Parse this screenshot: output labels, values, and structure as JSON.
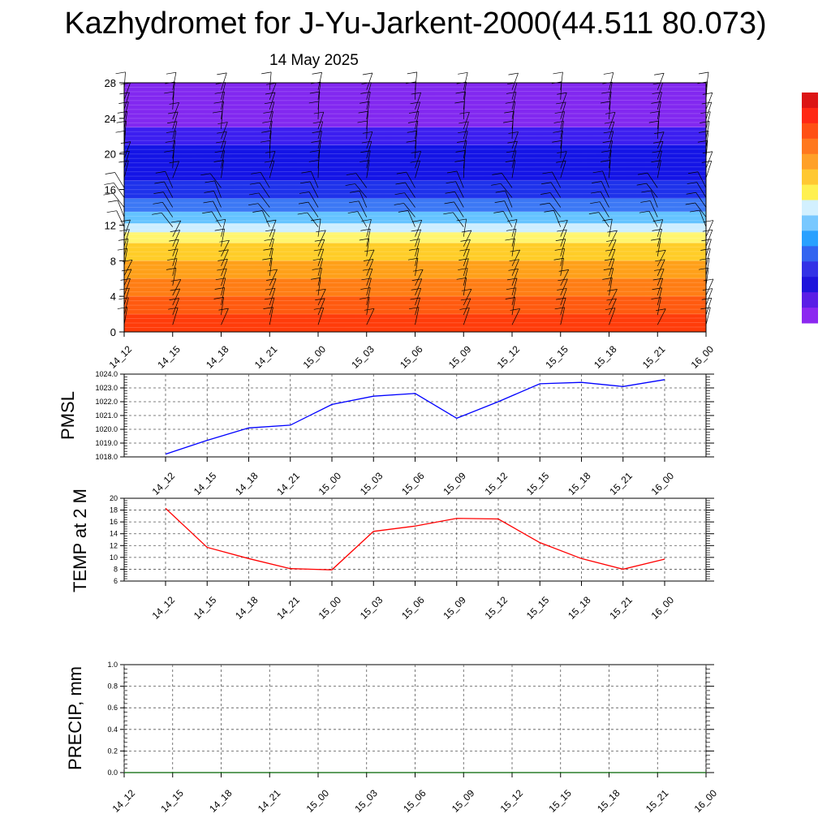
{
  "title": "Kazhydromet for J-Yu-Jarkent-2000(44.511 80.073)",
  "date": "14 May 2025",
  "chart_data": [
    {
      "type": "heatmap",
      "title": "",
      "xlabel": "",
      "ylabel": "",
      "x_labels": [
        "14_12",
        "14_15",
        "14_18",
        "14_21",
        "15_00",
        "15_03",
        "15_06",
        "15_09",
        "15_12",
        "15_15",
        "15_18",
        "15_21",
        "16_00"
      ],
      "y_ticks": [
        0,
        4,
        8,
        12,
        16,
        20,
        24,
        28
      ],
      "ylim": [
        0,
        28
      ],
      "color_bands": [
        {
          "from": 0,
          "to": 2,
          "color": "#ff3c0a"
        },
        {
          "from": 2,
          "to": 4,
          "color": "#ff5a0f"
        },
        {
          "from": 4,
          "to": 6,
          "color": "#ff7d14"
        },
        {
          "from": 6,
          "to": 8,
          "color": "#ffa019"
        },
        {
          "from": 8,
          "to": 10,
          "color": "#ffcd28"
        },
        {
          "from": 10,
          "to": 11.2,
          "color": "#fff56e"
        },
        {
          "from": 11.2,
          "to": 12.2,
          "color": "#cdeeff"
        },
        {
          "from": 12.2,
          "to": 13.5,
          "color": "#64c3ff"
        },
        {
          "from": 13.5,
          "to": 15,
          "color": "#3c78f5"
        },
        {
          "from": 15,
          "to": 17,
          "color": "#1e32eb"
        },
        {
          "from": 17,
          "to": 21,
          "color": "#1414e6"
        },
        {
          "from": 21,
          "to": 23,
          "color": "#3c1ef0"
        },
        {
          "from": 23,
          "to": 28,
          "color": "#8228f0"
        }
      ],
      "colorbar": [
        "#dc1414",
        "#ff2814",
        "#ff5014",
        "#ff781e",
        "#ffa028",
        "#ffc832",
        "#fff050",
        "#d2f0ff",
        "#78c8ff",
        "#28a0ff",
        "#3264f0",
        "#3232e6",
        "#1e14dc",
        "#5a1ee6",
        "#8c28f0"
      ],
      "wind_barbs": true
    },
    {
      "type": "line",
      "title": "",
      "ylabel": "PMSL",
      "x_labels": [
        "14_12",
        "14_15",
        "14_18",
        "14_21",
        "15_00",
        "15_03",
        "15_06",
        "15_09",
        "15_12",
        "15_15",
        "15_18",
        "15_21",
        "16_00"
      ],
      "series": [
        {
          "color": "#0000ff",
          "values": [
            1018.2,
            1019.2,
            1020.1,
            1020.3,
            1021.8,
            1022.4,
            1022.6,
            1020.8,
            1022.0,
            1023.3,
            1023.4,
            1023.1,
            1023.6
          ]
        }
      ],
      "y_ticks": [
        1018.0,
        1019.0,
        1020.0,
        1021.0,
        1022.0,
        1023.0,
        1024.0
      ],
      "y_tick_labels": [
        "1018.0",
        "1019.0",
        "1020.0",
        "1021.0",
        "1022.0",
        "1023.0",
        "1024.0"
      ],
      "ylim": [
        1018.0,
        1024.0
      ],
      "grid": true
    },
    {
      "type": "line",
      "title": "",
      "ylabel": "TEMP at 2 M",
      "x_labels": [
        "14_12",
        "14_15",
        "14_18",
        "14_21",
        "15_00",
        "15_03",
        "15_06",
        "15_09",
        "15_12",
        "15_15",
        "15_18",
        "15_21",
        "16_00"
      ],
      "series": [
        {
          "color": "#ff0000",
          "values": [
            18.3,
            11.7,
            9.8,
            8.1,
            7.9,
            14.4,
            15.3,
            16.6,
            16.5,
            12.5,
            9.8,
            8.0,
            9.7
          ]
        }
      ],
      "y_ticks": [
        6,
        8,
        10,
        12,
        14,
        16,
        18,
        20
      ],
      "y_tick_labels": [
        "6",
        "8",
        "10",
        "12",
        "14",
        "16",
        "18",
        "20"
      ],
      "ylim": [
        6,
        20
      ],
      "grid": true
    },
    {
      "type": "line",
      "title": "",
      "ylabel": "PRECIP, mm",
      "x_labels": [
        "14_12",
        "14_15",
        "14_18",
        "14_21",
        "15_00",
        "15_03",
        "15_06",
        "15_09",
        "15_12",
        "15_15",
        "15_18",
        "15_21",
        "16_00"
      ],
      "series": [
        {
          "color": "#006400",
          "values": [
            0,
            0,
            0,
            0,
            0,
            0,
            0,
            0,
            0,
            0,
            0,
            0,
            0
          ]
        }
      ],
      "y_ticks": [
        0.0,
        0.2,
        0.4,
        0.6,
        0.8,
        1.0
      ],
      "y_tick_labels": [
        "0.0",
        "0.2",
        "0.4",
        "0.6",
        "0.8",
        "1.0"
      ],
      "ylim": [
        0.0,
        1.0
      ],
      "grid": true
    }
  ]
}
